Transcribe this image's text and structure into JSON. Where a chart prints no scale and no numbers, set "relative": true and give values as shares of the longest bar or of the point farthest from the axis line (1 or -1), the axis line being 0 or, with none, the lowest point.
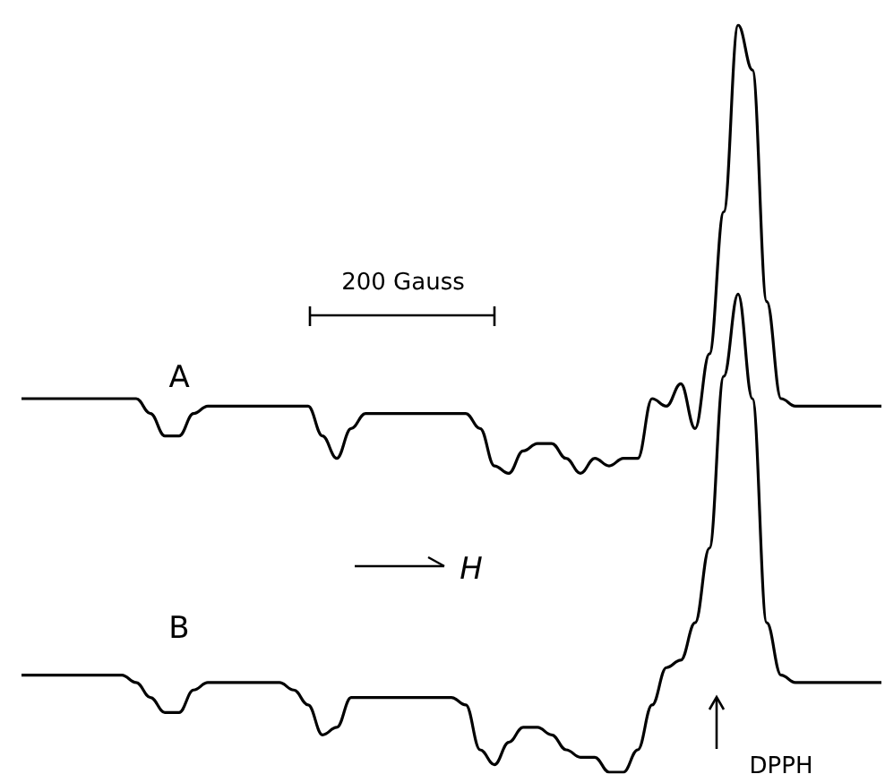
{
  "chart_data": {
    "type": "line",
    "relative": true,
    "marker": "none",
    "line_style": "solid",
    "categories": [
      null,
      null,
      null,
      null,
      null,
      null,
      null,
      null,
      null,
      null,
      null,
      null,
      null,
      null,
      null,
      null,
      null,
      null,
      null,
      null,
      null,
      null,
      null,
      null,
      null,
      null,
      null,
      null,
      null,
      null,
      null,
      null,
      null,
      null,
      null,
      null,
      null,
      null,
      null,
      null,
      null,
      null,
      null,
      null,
      null,
      null,
      null,
      null,
      null,
      null,
      null,
      null,
      null,
      null,
      null,
      null,
      null,
      null,
      null,
      null,
      null
    ],
    "series": [
      {
        "name": "A",
        "color": "#000000",
        "values": [
          0.5,
          0.5,
          0.5,
          0.5,
          0.5,
          0.5,
          0.5,
          0.5,
          0.5,
          0.48,
          0.45,
          0.45,
          0.48,
          0.49,
          0.49,
          0.49,
          0.49,
          0.49,
          0.49,
          0.49,
          0.49,
          0.45,
          0.42,
          0.46,
          0.48,
          0.48,
          0.48,
          0.48,
          0.48,
          0.48,
          0.48,
          0.48,
          0.46,
          0.41,
          0.4,
          0.43,
          0.44,
          0.44,
          0.42,
          0.4,
          0.42,
          0.41,
          0.42,
          0.42,
          0.5,
          0.49,
          0.52,
          0.46,
          0.56,
          0.75,
          1.0,
          0.94,
          0.63,
          0.5,
          0.49,
          0.49,
          0.49,
          0.49,
          0.49,
          0.49,
          0.49
        ]
      },
      {
        "name": "B",
        "color": "#000000",
        "values": [
          0.13,
          0.13,
          0.13,
          0.13,
          0.13,
          0.13,
          0.13,
          0.13,
          0.12,
          0.1,
          0.08,
          0.08,
          0.11,
          0.12,
          0.12,
          0.12,
          0.12,
          0.12,
          0.12,
          0.11,
          0.09,
          0.05,
          0.06,
          0.1,
          0.1,
          0.1,
          0.1,
          0.1,
          0.1,
          0.1,
          0.1,
          0.09,
          0.03,
          0.01,
          0.04,
          0.06,
          0.06,
          0.05,
          0.03,
          0.02,
          0.02,
          0.0,
          0.0,
          0.03,
          0.09,
          0.14,
          0.15,
          0.2,
          0.3,
          0.53,
          0.64,
          0.5,
          0.2,
          0.13,
          0.12,
          0.12,
          0.12,
          0.12,
          0.12,
          0.12,
          0.12
        ]
      }
    ],
    "annotations": [
      "200 Gauss",
      "H",
      "DPPH"
    ]
  }
}
